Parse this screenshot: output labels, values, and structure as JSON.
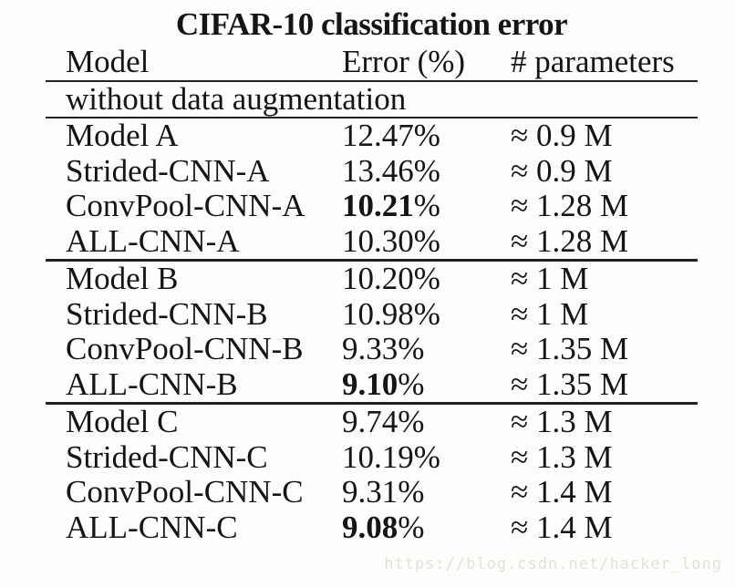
{
  "table": {
    "title": "CIFAR-10 classification error",
    "columns": {
      "model": "Model",
      "error": "Error (%)",
      "parameters": "# parameters"
    },
    "subheader": "without data augmentation",
    "percent_sign": "%",
    "sections": [
      {
        "rows": [
          {
            "model": "Model A",
            "error": "12.47",
            "error_bold": false,
            "params": "≈ 0.9 M"
          },
          {
            "model": "Strided-CNN-A",
            "error": "13.46",
            "error_bold": false,
            "params": "≈ 0.9 M"
          },
          {
            "model": "ConvPool-CNN-A",
            "error": "10.21",
            "error_bold": true,
            "params": "≈ 1.28 M"
          },
          {
            "model": "ALL-CNN-A",
            "error": "10.30",
            "error_bold": false,
            "params": "≈ 1.28 M"
          }
        ]
      },
      {
        "rows": [
          {
            "model": "Model B",
            "error": "10.20",
            "error_bold": false,
            "params": "≈ 1 M"
          },
          {
            "model": "Strided-CNN-B",
            "error": "10.98",
            "error_bold": false,
            "params": "≈ 1 M"
          },
          {
            "model": "ConvPool-CNN-B",
            "error": "9.33",
            "error_bold": false,
            "params": "≈ 1.35 M"
          },
          {
            "model": "ALL-CNN-B",
            "error": "9.10",
            "error_bold": true,
            "params": "≈ 1.35 M"
          }
        ]
      },
      {
        "rows": [
          {
            "model": "Model C",
            "error": "9.74",
            "error_bold": false,
            "params": "≈ 1.3 M"
          },
          {
            "model": "Strided-CNN-C",
            "error": "10.19",
            "error_bold": false,
            "params": "≈ 1.3 M"
          },
          {
            "model": "ConvPool-CNN-C",
            "error": "9.31",
            "error_bold": false,
            "params": "≈ 1.4 M"
          },
          {
            "model": "ALL-CNN-C",
            "error": "9.08",
            "error_bold": true,
            "params": "≈ 1.4 M"
          }
        ]
      }
    ],
    "rule_color": "#222222"
  },
  "watermark": {
    "text": "https://blog.csdn.net/hacker_long",
    "color": "#e5e1da"
  }
}
